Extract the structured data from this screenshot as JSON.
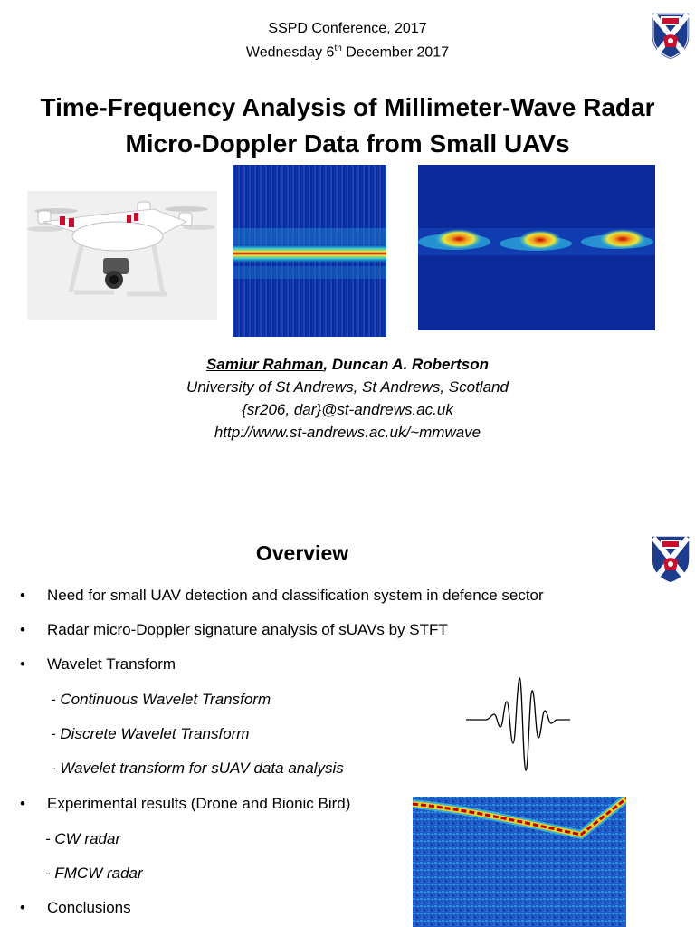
{
  "slide1": {
    "conference": "SSPD Conference, 2017",
    "date_prefix": "Wednesday 6",
    "date_sup": "th",
    "date_suffix": " December 2017",
    "title_line1": "Time-Frequency Analysis of Millimeter-Wave Radar",
    "title_line2": "Micro-Doppler Data from Small UAVs",
    "author1": "Samiur Rahman",
    "author_sep": ", ",
    "author2": "Duncan A. Robertson",
    "affiliation": "University of St Andrews, St Andrews, Scotland",
    "email": "{sr206, dar}@st-andrews.ac.uk",
    "url": "http://www.st-andrews.ac.uk/~mmwave"
  },
  "slide2": {
    "heading": "Overview",
    "bullets": [
      "Need for small UAV detection and classification system in defence sector",
      "Radar micro-Doppler signature analysis of sUAVs by STFT",
      "Wavelet Transform",
      "Experimental results (Drone and Bionic Bird)",
      "Conclusions"
    ],
    "wavelet_subs": [
      "- Continuous Wavelet Transform",
      "- Discrete Wavelet Transform",
      "- Wavelet transform for sUAV data analysis"
    ],
    "experiment_subs": [
      "- CW radar",
      "- FMCW radar"
    ]
  },
  "colors": {
    "spectrogram_bg": "#0a2a9a",
    "crest_blue": "#1e3c8c",
    "crest_red": "#c8102e"
  }
}
